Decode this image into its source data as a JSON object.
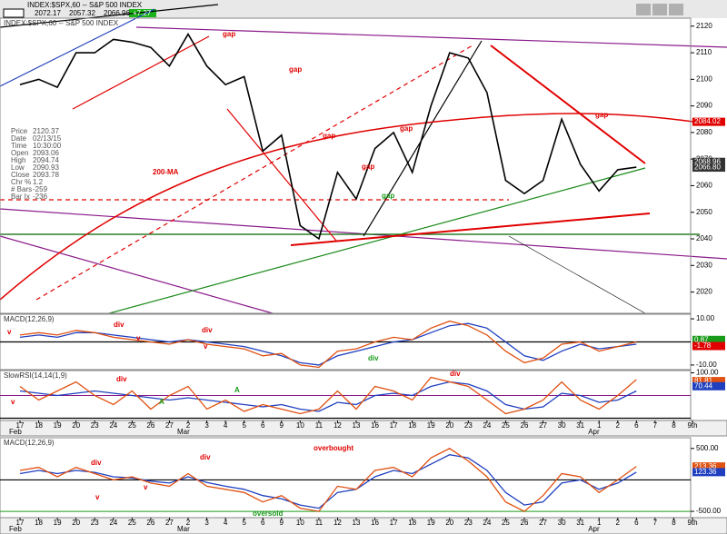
{
  "chart_data": [
    {
      "type": "line",
      "title": "INDEX:$SPX,60 -- S&P 500 INDEX",
      "quote": [
        "2072.17",
        "2057.32",
        "2066.96"
      ],
      "change": "+7.27",
      "info": [
        [
          "Price",
          "2120.37"
        ],
        [
          "Date",
          "02/13/15"
        ],
        [
          "Time",
          "10:30:00"
        ],
        [
          "Open",
          "2093.06"
        ],
        [
          "High",
          "2094.74"
        ],
        [
          "Low",
          "2090.93"
        ],
        [
          "Close",
          "2093.78"
        ],
        [
          "Chr %",
          "1.2"
        ],
        [
          "# Bars",
          "-259"
        ],
        [
          "Bar Ix",
          "-236"
        ]
      ],
      "categories": [
        "17",
        "18",
        "19",
        "20",
        "23",
        "24",
        "25",
        "26",
        "27",
        "2",
        "3",
        "4",
        "5",
        "6",
        "9",
        "10",
        "11",
        "12",
        "13",
        "16",
        "17",
        "18",
        "19",
        "20",
        "23",
        "24",
        "25",
        "26",
        "27",
        "30",
        "31",
        "1",
        "2",
        "6",
        "7",
        "8",
        "9th"
      ],
      "month_labels": [
        "Feb",
        "Mar",
        "Apr"
      ],
      "series": [
        {
          "color": "#000000",
          "values": [
            2098,
            2100,
            2097,
            2110,
            2110,
            2115,
            2114,
            2112,
            2105,
            2117,
            2105,
            2098,
            2101,
            2073,
            2079,
            2045,
            2040,
            2065,
            2055,
            2074,
            2080,
            2065,
            2090,
            2110,
            2108,
            2095,
            2062,
            2057,
            2062,
            2085,
            2068,
            2058,
            2066,
            2066.96,
            null,
            null,
            null
          ]
        }
      ],
      "ylim": [
        2012,
        2123
      ],
      "yticks": [
        2020,
        2030,
        2040,
        2050,
        2060,
        2070,
        2080,
        2090,
        2100,
        2110,
        2120
      ],
      "price_markers": [
        {
          "value": 2084.02,
          "label": "2084.02",
          "color": "#e00000"
        },
        {
          "value": 2068.96,
          "label": "2068.96",
          "color": "#333333"
        },
        {
          "value": 2066.8,
          "label": "2066.80",
          "color": "#333333"
        }
      ],
      "annotations": [
        "gap",
        "gap",
        "gap",
        "gap",
        "gap",
        "gap",
        "gap",
        "200-MA"
      ]
    },
    {
      "type": "line",
      "title": "MACD(12,26,9)",
      "series": [
        {
          "color": "#1f3fbf",
          "values": [
            2,
            3,
            2,
            4,
            4,
            3,
            2,
            1,
            0,
            1,
            0,
            -1,
            -2,
            -4,
            -6,
            -9,
            -10,
            -6,
            -4,
            -2,
            0,
            1,
            4,
            7,
            8,
            6,
            0,
            -6,
            -8,
            -4,
            -1,
            -3,
            -2,
            -1,
            null,
            null,
            null
          ]
        },
        {
          "color": "#e05010",
          "values": [
            3,
            4,
            3,
            5,
            4,
            2,
            1,
            0,
            -1,
            1,
            -1,
            -2,
            -3,
            -6,
            -5,
            -10,
            -11,
            -4,
            -3,
            0,
            2,
            1,
            6,
            9,
            7,
            3,
            -4,
            -9,
            -7,
            -1,
            0,
            -4,
            -2,
            0,
            null,
            null,
            null
          ]
        }
      ],
      "ylim": [
        -12,
        12
      ],
      "yticks": [
        {
          "value": 10,
          "label": "10.00"
        },
        {
          "value": -10,
          "label": "-10.00"
        }
      ],
      "price_markers": [
        {
          "value": 0.87,
          "label": "0.87",
          "color": "#1a9a1a"
        },
        {
          "value": -1.78,
          "label": "-1.78",
          "color": "#e00000"
        }
      ],
      "annotations": [
        "div",
        "div",
        "v",
        "v",
        "v",
        "div"
      ]
    },
    {
      "type": "line",
      "title": "SlowRSI(14,14(1,9)",
      "series": [
        {
          "color": "#1f3fbf",
          "values": [
            60,
            55,
            50,
            55,
            60,
            55,
            50,
            45,
            40,
            45,
            40,
            35,
            30,
            25,
            30,
            20,
            15,
            35,
            30,
            50,
            55,
            50,
            70,
            80,
            75,
            60,
            30,
            20,
            25,
            55,
            50,
            35,
            40,
            60,
            null,
            null,
            null
          ]
        },
        {
          "color": "#e05010",
          "values": [
            70,
            40,
            60,
            80,
            50,
            30,
            60,
            20,
            50,
            70,
            20,
            40,
            15,
            30,
            20,
            10,
            20,
            60,
            20,
            70,
            60,
            40,
            90,
            80,
            70,
            40,
            10,
            20,
            40,
            80,
            40,
            20,
            50,
            85,
            null,
            null,
            null
          ]
        }
      ],
      "ylim": [
        -5,
        105
      ],
      "yticks": [
        {
          "value": 100,
          "label": "100.00"
        }
      ],
      "price_markers": [
        {
          "value": 81.81,
          "label": "81.81",
          "color": "#e05010"
        },
        {
          "value": 70.44,
          "label": "70.44",
          "color": "#1f3fbf"
        }
      ],
      "annotations": [
        "v",
        "div",
        "A",
        "A",
        "div"
      ]
    },
    {
      "type": "line",
      "title": "MACD(12,26,9)",
      "series": [
        {
          "color": "#1f3fbf",
          "values": [
            100,
            150,
            100,
            150,
            120,
            50,
            30,
            -20,
            -50,
            50,
            -40,
            -100,
            -150,
            -250,
            -300,
            -400,
            -450,
            -200,
            -150,
            50,
            150,
            100,
            250,
            400,
            350,
            150,
            -200,
            -400,
            -350,
            -50,
            0,
            -150,
            -50,
            123.36,
            null,
            null,
            null
          ]
        },
        {
          "color": "#e05010",
          "values": [
            150,
            200,
            50,
            200,
            100,
            0,
            50,
            -50,
            -100,
            100,
            -100,
            -150,
            -200,
            -350,
            -250,
            -450,
            -500,
            -100,
            -150,
            150,
            200,
            50,
            350,
            500,
            300,
            50,
            -350,
            -500,
            -250,
            100,
            50,
            -200,
            0,
            213.36,
            null,
            null,
            null
          ]
        }
      ],
      "ylim": [
        -600,
        670
      ],
      "yticks": [
        {
          "value": 500,
          "label": "500.00"
        },
        {
          "value": -500,
          "label": "-500.00"
        }
      ],
      "price_markers": [
        {
          "value": 213.36,
          "label": "213.36",
          "color": "#e05010"
        },
        {
          "value": 123.36,
          "label": "123.36",
          "color": "#1f3fbf"
        }
      ],
      "annotations": [
        "overbought",
        "oversold",
        "div",
        "div",
        "v",
        "v"
      ]
    }
  ]
}
